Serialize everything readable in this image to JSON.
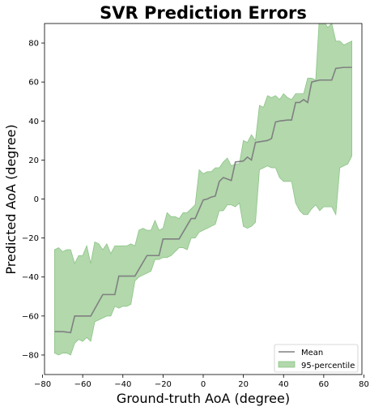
{
  "chart_data": {
    "type": "area",
    "title": "SVR Prediction Errors",
    "xlabel": "Ground-truth AoA (degree)",
    "ylabel": "Predicted AoA (degree)",
    "xlim": [
      -79,
      79
    ],
    "ylim": [
      -90,
      90
    ],
    "xticks": [
      -80,
      -60,
      -40,
      -20,
      0,
      20,
      40,
      60,
      80
    ],
    "yticks": [
      -80,
      -60,
      -40,
      -20,
      0,
      20,
      40,
      60,
      80
    ],
    "grid": false,
    "legend": {
      "placement": "bottom-right",
      "entries": [
        "Mean",
        "95-percentile"
      ]
    },
    "colors": {
      "mean": "#808080",
      "band_fill": "#b2d8ac",
      "band_edge": "#8cc486"
    },
    "series": [
      {
        "name": "Mean",
        "type": "line",
        "x": [
          -74,
          -70,
          -66,
          -64,
          -58,
          -56,
          -50,
          -47,
          -44,
          -42,
          -36,
          -34,
          -28,
          -26,
          -22,
          -20,
          -14,
          -12,
          -6,
          -4,
          0,
          2,
          4,
          6,
          8,
          10,
          14,
          16,
          20,
          22,
          24,
          26,
          32,
          34,
          36,
          38,
          42,
          44,
          46,
          48,
          50,
          52,
          54,
          56,
          58,
          60,
          64,
          66,
          70,
          72,
          74
        ],
        "y": [
          -68,
          -68,
          -68.5,
          -60,
          -60,
          -60,
          -49,
          -49,
          -49,
          -39.5,
          -39.5,
          -39.5,
          -29,
          -29,
          -29,
          -20.5,
          -20.5,
          -20.5,
          -10,
          -10,
          -0.5,
          0,
          1,
          1.5,
          9,
          11,
          9.5,
          19,
          19.5,
          21.5,
          20,
          29,
          30,
          31,
          39.5,
          40,
          40.5,
          40.5,
          49.5,
          49.5,
          51,
          49.5,
          60,
          60.5,
          61,
          61,
          61,
          67,
          67.5,
          67.5,
          67.5
        ]
      },
      {
        "name": "95-percentile",
        "type": "band",
        "x": [
          -74,
          -72,
          -70,
          -68,
          -66,
          -64,
          -62,
          -60,
          -58,
          -56,
          -54,
          -52,
          -50,
          -48,
          -46,
          -44,
          -42,
          -40,
          -38,
          -36,
          -34,
          -32,
          -30,
          -28,
          -26,
          -24,
          -22,
          -20,
          -18,
          -16,
          -14,
          -12,
          -10,
          -8,
          -6,
          -4,
          -2,
          0,
          2,
          4,
          6,
          8,
          10,
          12,
          14,
          16,
          18,
          20,
          22,
          24,
          26,
          28,
          30,
          32,
          34,
          36,
          38,
          40,
          42,
          44,
          46,
          48,
          50,
          52,
          54,
          56,
          58,
          60,
          62,
          64,
          66,
          68,
          70,
          72,
          74
        ],
        "upper": [
          -26,
          -25,
          -27,
          -26,
          -26,
          -33,
          -29,
          -29,
          -24,
          -33,
          -22,
          -23,
          -26,
          -23,
          -28,
          -24,
          -24,
          -24,
          -24,
          -23,
          -24,
          -16,
          -15,
          -16,
          -16,
          -11,
          -16,
          -15,
          -7,
          -9,
          -9,
          -10,
          -7,
          -7,
          -5,
          -3,
          15,
          13,
          14,
          14,
          16,
          16,
          19,
          21,
          17,
          18,
          18,
          30,
          29,
          33,
          30,
          48,
          47,
          53,
          52,
          53,
          51,
          54,
          52,
          51,
          54,
          54,
          54,
          62,
          62,
          61,
          96,
          91,
          88,
          90,
          81,
          81,
          79,
          80,
          81
        ],
        "lower": [
          -79,
          -80,
          -79,
          -79,
          -80,
          -74,
          -72,
          -73,
          -71,
          -73,
          -63,
          -62,
          -61,
          -60,
          -60,
          -55,
          -56,
          -55,
          -55,
          -54,
          -42,
          -40,
          -39,
          -38,
          -37,
          -31,
          -31,
          -30,
          -30,
          -29,
          -27,
          -25,
          -25,
          -26,
          -20,
          -20,
          -17,
          -16,
          -15,
          -14,
          -13,
          -6,
          -6,
          -3,
          -3,
          -4,
          -2,
          -14,
          -15,
          -14,
          -12,
          15,
          16,
          17,
          16,
          16,
          11,
          9,
          9,
          9,
          -2,
          -6,
          -8,
          -8,
          -5,
          -3,
          -6,
          -4,
          -4,
          -4,
          -8,
          16,
          17,
          18,
          22
        ]
      }
    ]
  }
}
